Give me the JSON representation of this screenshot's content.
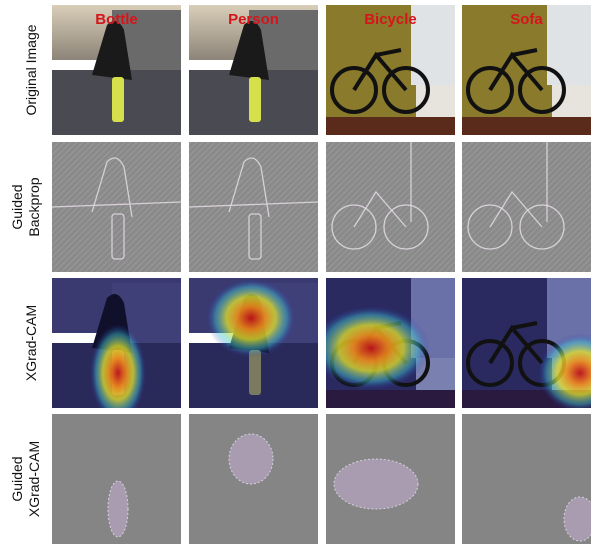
{
  "columns": [
    "Bottle",
    "Person",
    "Bicycle",
    "Sofa"
  ],
  "rows": [
    [
      "Original Image"
    ],
    [
      "Guided",
      "Backprop"
    ],
    [
      "XGrad-CAM"
    ],
    [
      "Guided",
      "XGrad-CAM"
    ]
  ]
}
